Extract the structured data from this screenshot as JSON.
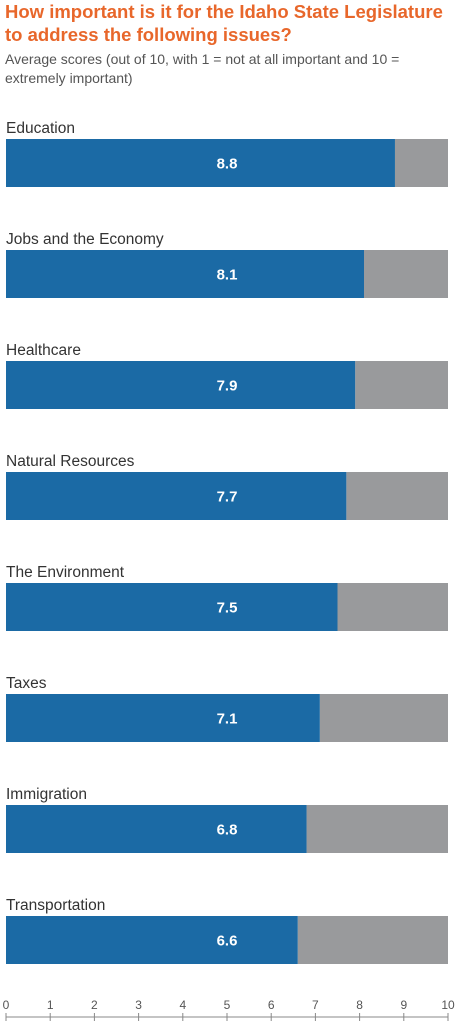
{
  "chart_data": {
    "type": "bar",
    "orientation": "horizontal",
    "stacked_with_remainder": true,
    "title": "How important is it for the Idaho State Legislature to address the following issues?",
    "subtitle": "Average scores (out of 10, with 1 = not at all important and 10 = extremely important)",
    "categories": [
      "Education",
      "Jobs and the Economy",
      "Healthcare",
      "Natural Resources",
      "The Environment",
      "Taxes",
      "Immigration",
      "Transportation"
    ],
    "values": [
      8.8,
      8.1,
      7.9,
      7.7,
      7.5,
      7.1,
      6.8,
      6.6
    ],
    "value_labels": [
      "8.8",
      "8.1",
      "7.9",
      "7.7",
      "7.5",
      "7.1",
      "6.8",
      "6.6"
    ],
    "xlim": [
      0,
      10
    ],
    "xticks": [
      0,
      1,
      2,
      3,
      4,
      5,
      6,
      7,
      8,
      9,
      10
    ],
    "colors": {
      "bar": "#1b6aa5",
      "remainder": "#999a9c",
      "title": "#e8672b",
      "axis": "#888888"
    },
    "legend": "none",
    "grid": false
  }
}
